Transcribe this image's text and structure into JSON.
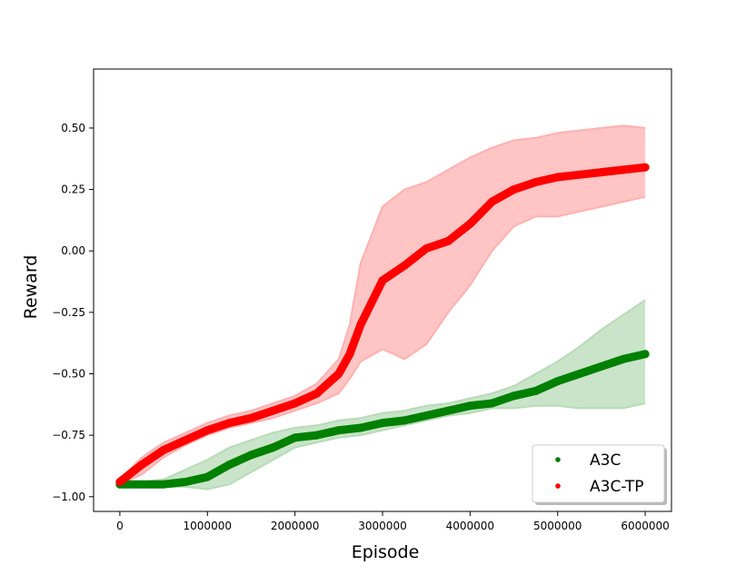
{
  "chart_data": {
    "type": "line",
    "xlabel": "Episode",
    "ylabel": "Reward",
    "xlim": [
      -300000,
      6300000
    ],
    "ylim": [
      -1.06,
      0.74
    ],
    "x_ticks": [
      0,
      1000000,
      2000000,
      3000000,
      4000000,
      5000000,
      6000000
    ],
    "x_tick_labels": [
      "0",
      "1000000",
      "2000000",
      "3000000",
      "4000000",
      "5000000",
      "6000000"
    ],
    "y_ticks": [
      -1.0,
      -0.75,
      -0.5,
      -0.25,
      0.0,
      0.25,
      0.5
    ],
    "y_tick_labels": [
      "−1.00",
      "−0.75",
      "−0.50",
      "−0.25",
      "0.00",
      "0.25",
      "0.50"
    ],
    "grid": false,
    "legend_position": "bottom-right",
    "legend": [
      {
        "label": "A3C",
        "color": "#008000"
      },
      {
        "label": "A3C-TP",
        "color": "#ff0000"
      }
    ],
    "series": [
      {
        "name": "A3C",
        "color": "#008000",
        "band_color": "#b7dbb7",
        "x": [
          0,
          250000,
          500000,
          750000,
          1000000,
          1250000,
          1500000,
          1750000,
          2000000,
          2250000,
          2500000,
          2750000,
          3000000,
          3250000,
          3500000,
          3750000,
          4000000,
          4250000,
          4500000,
          4750000,
          5000000,
          5250000,
          5500000,
          5750000,
          6000000
        ],
        "mean": [
          -0.95,
          -0.95,
          -0.95,
          -0.94,
          -0.92,
          -0.87,
          -0.83,
          -0.8,
          -0.76,
          -0.75,
          -0.73,
          -0.72,
          -0.7,
          -0.69,
          -0.67,
          -0.65,
          -0.63,
          -0.62,
          -0.59,
          -0.57,
          -0.53,
          -0.5,
          -0.47,
          -0.44,
          -0.42
        ],
        "upper": [
          -0.94,
          -0.94,
          -0.93,
          -0.89,
          -0.85,
          -0.8,
          -0.77,
          -0.74,
          -0.72,
          -0.71,
          -0.69,
          -0.68,
          -0.66,
          -0.65,
          -0.63,
          -0.62,
          -0.6,
          -0.58,
          -0.55,
          -0.5,
          -0.45,
          -0.39,
          -0.32,
          -0.26,
          -0.2
        ],
        "lower": [
          -0.95,
          -0.96,
          -0.96,
          -0.96,
          -0.97,
          -0.95,
          -0.9,
          -0.85,
          -0.8,
          -0.78,
          -0.76,
          -0.75,
          -0.73,
          -0.71,
          -0.69,
          -0.67,
          -0.66,
          -0.64,
          -0.64,
          -0.63,
          -0.63,
          -0.64,
          -0.64,
          -0.64,
          -0.62
        ]
      },
      {
        "name": "A3C-TP",
        "color": "#ff0000",
        "band_color": "#ffb0b0",
        "x": [
          0,
          250000,
          500000,
          750000,
          1000000,
          1250000,
          1500000,
          1750000,
          2000000,
          2250000,
          2500000,
          2625000,
          2750000,
          3000000,
          3250000,
          3500000,
          3750000,
          4000000,
          4250000,
          4500000,
          4750000,
          5000000,
          5250000,
          5500000,
          5750000,
          6000000
        ],
        "mean": [
          -0.94,
          -0.87,
          -0.81,
          -0.77,
          -0.73,
          -0.7,
          -0.68,
          -0.65,
          -0.62,
          -0.58,
          -0.5,
          -0.42,
          -0.3,
          -0.12,
          -0.06,
          0.01,
          0.04,
          0.11,
          0.2,
          0.25,
          0.28,
          0.3,
          0.31,
          0.32,
          0.33,
          0.34
        ],
        "upper": [
          -0.93,
          -0.84,
          -0.78,
          -0.74,
          -0.7,
          -0.67,
          -0.65,
          -0.62,
          -0.59,
          -0.54,
          -0.44,
          -0.3,
          -0.05,
          0.18,
          0.25,
          0.28,
          0.33,
          0.38,
          0.42,
          0.45,
          0.46,
          0.48,
          0.49,
          0.5,
          0.51,
          0.5
        ],
        "lower": [
          -0.95,
          -0.91,
          -0.84,
          -0.79,
          -0.75,
          -0.72,
          -0.7,
          -0.68,
          -0.65,
          -0.62,
          -0.58,
          -0.52,
          -0.45,
          -0.4,
          -0.44,
          -0.38,
          -0.25,
          -0.14,
          0.0,
          0.1,
          0.14,
          0.14,
          0.16,
          0.18,
          0.2,
          0.22
        ]
      }
    ]
  }
}
